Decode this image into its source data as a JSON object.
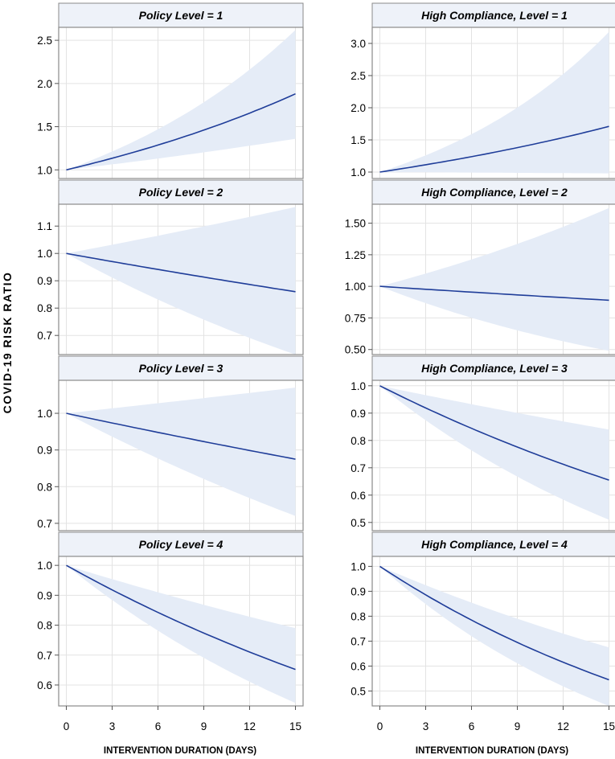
{
  "chart_data": {
    "type": "line",
    "ylabel": "COVID-19 RISK RATIO",
    "xlabel": "INTERVENTION DURATION (DAYS)",
    "x_ticks": [
      0,
      3,
      6,
      9,
      12,
      15
    ],
    "x_tick_labels": [
      "0",
      "3",
      "6",
      "9",
      "12",
      "15"
    ],
    "xlim": [
      -0.5,
      15.5
    ],
    "colors": {
      "line": "#1f3d99",
      "band": "#e5ecf7",
      "grid": "#e3e3e3",
      "frame": "#8a8a8a",
      "header_bg": "#eef2f9"
    },
    "panels": [
      {
        "title": "Policy Level = 1",
        "line_end": 1.88,
        "band_end": [
          1.36,
          2.62
        ],
        "ylim": [
          0.9,
          2.65
        ],
        "yticks": [
          1.0,
          1.5,
          2.0,
          2.5
        ],
        "ytick_labels": [
          "1.0",
          "1.5",
          "2.0",
          "2.5"
        ]
      },
      {
        "title": "High Compliance, Level = 1",
        "line_end": 1.71,
        "band_end": [
          0.98,
          3.18
        ],
        "ylim": [
          0.9,
          3.25
        ],
        "yticks": [
          1.0,
          1.5,
          2.0,
          2.5,
          3.0
        ],
        "ytick_labels": [
          "1.0",
          "1.5",
          "2.0",
          "2.5",
          "3.0"
        ]
      },
      {
        "title": "Policy Level = 2",
        "line_end": 0.86,
        "band_end": [
          0.63,
          1.17
        ],
        "ylim": [
          0.63,
          1.18
        ],
        "yticks": [
          0.7,
          0.8,
          0.9,
          1.0,
          1.1
        ],
        "ytick_labels": [
          "0.7",
          "0.8",
          "0.9",
          "1.0",
          "1.1"
        ]
      },
      {
        "title": "High Compliance, Level = 2",
        "line_end": 0.89,
        "band_end": [
          0.49,
          1.62
        ],
        "ylim": [
          0.46,
          1.65
        ],
        "yticks": [
          0.5,
          0.75,
          1.0,
          1.25,
          1.5
        ],
        "ytick_labels": [
          "0.50",
          "0.75",
          "1.00",
          "1.25",
          "1.50"
        ]
      },
      {
        "title": "Policy Level = 3",
        "line_end": 0.875,
        "band_end": [
          0.72,
          1.07
        ],
        "ylim": [
          0.68,
          1.09
        ],
        "yticks": [
          0.7,
          0.8,
          0.9,
          1.0
        ],
        "ytick_labels": [
          "0.7",
          "0.8",
          "0.9",
          "1.0"
        ]
      },
      {
        "title": "High Compliance, Level = 3",
        "line_end": 0.655,
        "band_end": [
          0.51,
          0.84
        ],
        "ylim": [
          0.47,
          1.02
        ],
        "yticks": [
          0.5,
          0.6,
          0.7,
          0.8,
          0.9,
          1.0
        ],
        "ytick_labels": [
          "0.5",
          "0.6",
          "0.7",
          "0.8",
          "0.9",
          "1.0"
        ]
      },
      {
        "title": "Policy Level = 4",
        "line_end": 0.652,
        "band_end": [
          0.54,
          0.79
        ],
        "ylim": [
          0.53,
          1.03
        ],
        "yticks": [
          0.6,
          0.7,
          0.8,
          0.9,
          1.0
        ],
        "ytick_labels": [
          "0.6",
          "0.7",
          "0.8",
          "0.9",
          "1.0"
        ]
      },
      {
        "title": "High Compliance, Level = 4",
        "line_end": 0.545,
        "band_end": [
          0.44,
          0.675
        ],
        "ylim": [
          0.44,
          1.04
        ],
        "yticks": [
          0.5,
          0.6,
          0.7,
          0.8,
          0.9,
          1.0
        ],
        "ytick_labels": [
          "0.5",
          "0.6",
          "0.7",
          "0.8",
          "0.9",
          "1.0"
        ]
      }
    ]
  }
}
